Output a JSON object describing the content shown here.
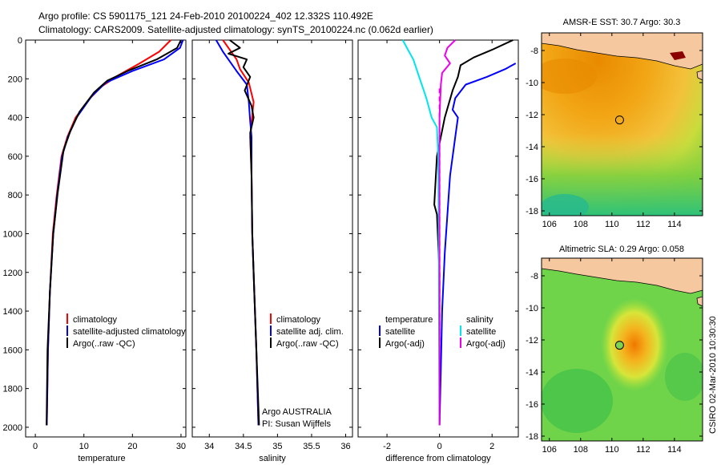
{
  "header": {
    "line1": "Argo profile: CS 5901175_121 24-Feb-2010 20100224_402 12.332S 110.492E",
    "line2": "Climatology: CARS2009. Satellite-adjusted climatology: synTS_20100224.nc (0.062d earlier)"
  },
  "side_text": "CSIRO 02-Mar-2010 10:30:30",
  "colors": {
    "climatology": "#ff0000",
    "satellite": "#0000ff",
    "argo": "#000000",
    "salinity_satellite": "#00e5ee",
    "salinity_argo": "#ee00ee",
    "land": "#f5c8a0"
  },
  "chart_data": [
    {
      "type": "line",
      "xlabel": "temperature",
      "ylabel": "",
      "xlim": [
        -2,
        31
      ],
      "ylim": [
        2050,
        0
      ],
      "xticks": [
        0,
        10,
        20,
        30
      ],
      "yticks": [
        0,
        200,
        400,
        600,
        800,
        1000,
        1200,
        1400,
        1600,
        1800,
        2000
      ],
      "legend": [
        "climatology",
        "satellite-adjusted climatology",
        "Argo(..raw -QC)"
      ],
      "series": [
        {
          "name": "climatology",
          "color": "#ff0000",
          "x": [
            27.9,
            25.5,
            21.5,
            17.2,
            13.6,
            11.3,
            8.3,
            6.6,
            5.4,
            4.4,
            3.6,
            3.0,
            2.6,
            2.35
          ],
          "y": [
            0,
            60,
            120,
            180,
            240,
            300,
            400,
            500,
            600,
            800,
            1000,
            1300,
            1600,
            1990
          ]
        },
        {
          "name": "satellite-adjusted climatology",
          "color": "#0000ff",
          "x": [
            30.4,
            29.8,
            26.5,
            20.0,
            14.5,
            11.6,
            8.5,
            6.7,
            5.5,
            4.5,
            3.7,
            3.0,
            2.6,
            2.35
          ],
          "y": [
            0,
            40,
            100,
            160,
            220,
            290,
            400,
            500,
            600,
            800,
            1000,
            1300,
            1600,
            1990
          ]
        },
        {
          "name": "Argo(..raw -QC)",
          "color": "#000000",
          "x": [
            30.0,
            29.2,
            25.0,
            19.0,
            14.8,
            12.1,
            9.1,
            7.2,
            5.8,
            4.6,
            3.7,
            3.0,
            2.5,
            2.3
          ],
          "y": [
            0,
            40,
            100,
            160,
            210,
            270,
            370,
            470,
            570,
            790,
            1000,
            1300,
            1600,
            1990
          ]
        }
      ]
    },
    {
      "type": "line",
      "xlabel": "salinity",
      "xlim": [
        33.75,
        36.1
      ],
      "ylim": [
        2050,
        0
      ],
      "xticks": [
        34,
        34.5,
        35,
        35.5,
        36
      ],
      "legend": [
        "climatology",
        "satellite adj. clim.",
        "Argo(..raw -QC)"
      ],
      "annotations": [
        "Argo AUSTRALIA",
        "PI: Susan Wijffels"
      ],
      "series": [
        {
          "name": "climatology",
          "color": "#ff0000",
          "x": [
            34.2,
            34.3,
            34.4,
            34.45,
            34.58,
            34.65,
            34.62,
            34.6,
            34.62,
            34.63,
            34.66,
            34.69,
            34.72
          ],
          "y": [
            0,
            50,
            100,
            150,
            220,
            320,
            420,
            500,
            700,
            1000,
            1300,
            1600,
            1990
          ]
        },
        {
          "name": "satellite adj. clim.",
          "color": "#0000ff",
          "x": [
            34.1,
            34.2,
            34.3,
            34.4,
            34.55,
            34.58,
            34.6,
            34.62,
            34.62,
            34.63,
            34.66,
            34.69,
            34.72
          ],
          "y": [
            0,
            60,
            110,
            160,
            230,
            320,
            420,
            500,
            700,
            1000,
            1300,
            1600,
            1990
          ]
        },
        {
          "name": "Argo(..raw -QC)",
          "color": "#000000",
          "x": [
            34.3,
            34.45,
            34.28,
            34.55,
            34.5,
            34.6,
            34.52,
            34.62,
            34.65,
            34.6,
            34.62,
            34.63,
            34.66,
            34.69,
            34.73
          ],
          "y": [
            0,
            40,
            70,
            100,
            140,
            190,
            260,
            340,
            400,
            480,
            700,
            1000,
            1300,
            1600,
            1990
          ]
        }
      ]
    },
    {
      "type": "line",
      "xlabel": "difference from climatology",
      "xlim": [
        -3.1,
        3.0
      ],
      "ylim": [
        2050,
        0
      ],
      "xticks": [
        -2,
        0,
        2
      ],
      "legend_left": [
        "temperature",
        "satellite",
        "Argo(-adj)"
      ],
      "legend_right": [
        "salinity",
        "satellite",
        "Argo(-adj)"
      ],
      "series": [
        {
          "name": "temperature satellite",
          "color": "#0000ff",
          "x": [
            2.9,
            2.5,
            1.8,
            1.0,
            0.6,
            0.5,
            0.7,
            0.6,
            0.4,
            0.3,
            0.2,
            0.1,
            0.05,
            0.0
          ],
          "y": [
            120,
            150,
            190,
            230,
            300,
            360,
            400,
            500,
            700,
            900,
            1100,
            1400,
            1700,
            1990
          ]
        },
        {
          "name": "temperature Argo(-adj)",
          "color": "#000000",
          "x": [
            2.8,
            2.0,
            1.3,
            0.8,
            0.7,
            0.5,
            0.2,
            -0.1,
            -0.2,
            -0.1,
            0.0,
            0.0,
            0.0
          ],
          "y": [
            0,
            50,
            90,
            130,
            190,
            260,
            400,
            600,
            850,
            900,
            1200,
            1600,
            1990
          ]
        },
        {
          "name": "salinity satellite",
          "color": "#00e5ee",
          "x": [
            -1.4,
            -1.2,
            -1.0,
            -0.8,
            -0.5,
            -0.3,
            -0.1,
            -0.05,
            -0.03,
            -0.02,
            0.0
          ],
          "y": [
            0,
            50,
            100,
            180,
            300,
            400,
            450,
            600,
            1000,
            1500,
            1990
          ]
        },
        {
          "name": "salinity Argo(-adj)",
          "color": "#ee00ee",
          "x": [
            0.6,
            0.3,
            0.2,
            0.4,
            0.1,
            0.05,
            0.0,
            0.0,
            0.0
          ],
          "y": [
            0,
            40,
            80,
            120,
            170,
            230,
            400,
            1000,
            1990
          ]
        }
      ]
    },
    {
      "type": "heatmap",
      "title": "AMSR-E SST: 30.7 Argo: 30.3",
      "xlim": [
        105.5,
        115.8
      ],
      "ylim": [
        -18.3,
        -6.9
      ],
      "xticks": [
        106,
        108,
        110,
        112,
        114
      ],
      "yticks": [
        -8,
        -10,
        -12,
        -14,
        -16,
        -18
      ],
      "argo_position": {
        "lon": 110.492,
        "lat": -12.332
      },
      "colormap": "jet",
      "land_color": "#f5c8a0"
    },
    {
      "type": "heatmap",
      "title": "Altimetric SLA: 0.29 Argo: 0.058",
      "xlim": [
        105.5,
        115.8
      ],
      "ylim": [
        -18.3,
        -6.9
      ],
      "xticks": [
        106,
        108,
        110,
        112,
        114
      ],
      "yticks": [
        -8,
        -10,
        -12,
        -14,
        -16,
        -18
      ],
      "argo_position": {
        "lon": 110.492,
        "lat": -12.332
      },
      "colormap": "jet",
      "land_color": "#f5c8a0"
    }
  ]
}
